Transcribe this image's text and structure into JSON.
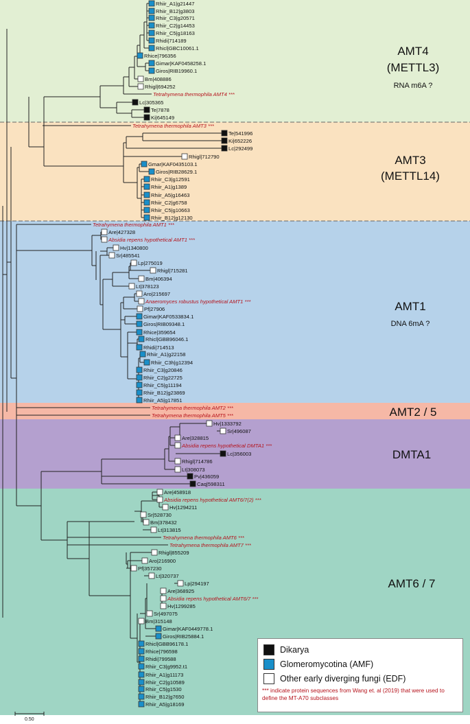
{
  "groups": [
    {
      "id": "amt4",
      "title": "AMT4",
      "title2": "(METTL3)",
      "subtitle": "RNA m6A ?",
      "color": "#e2efd3"
    },
    {
      "id": "amt3",
      "title": "AMT3",
      "title2": "(METTL14)",
      "subtitle": "",
      "color": "#fae2c0"
    },
    {
      "id": "amt1",
      "title": "AMT1",
      "title2": "",
      "subtitle": "DNA 6mA ?",
      "color": "#b6d2ea"
    },
    {
      "id": "amt25",
      "title": "AMT2 / 5",
      "title2": "",
      "subtitle": "",
      "color": "#f6b8a6"
    },
    {
      "id": "dmta1",
      "title": "DMTA1",
      "title2": "",
      "subtitle": "",
      "color": "#b4a0cf"
    },
    {
      "id": "amt67",
      "title": "AMT6 / 7",
      "title2": "",
      "subtitle": "",
      "color": "#9fd5c4"
    }
  ],
  "colors": {
    "dikarya": "#111111",
    "glomeromycotina": "#1a8fc9",
    "edf": "#ffffff",
    "tetrahymena": "#b5121b",
    "branch": "#222222"
  },
  "leaves": [
    {
      "label": "Rhiir_A1|g21447",
      "cat": "G"
    },
    {
      "label": "Rhiir_B12|g3803",
      "cat": "G"
    },
    {
      "label": "Rhiir_C3|g20571",
      "cat": "G"
    },
    {
      "label": "Rhiir_C2|g14453",
      "cat": "G"
    },
    {
      "label": "Rhiir_C5|g18163",
      "cat": "G"
    },
    {
      "label": "Rhidi|714189",
      "cat": "G"
    },
    {
      "label": "Rhicl|GBC10061.1",
      "cat": "G"
    },
    {
      "label": "Rhice|796356",
      "cat": "G"
    },
    {
      "label": "Gimar|KAF0458258.1",
      "cat": "G"
    },
    {
      "label": "Giros|RIB19960.1",
      "cat": "G"
    },
    {
      "label": "Bm|408886",
      "cat": "E"
    },
    {
      "label": "Rhigl|694252",
      "cat": "E"
    },
    {
      "label": "Tetrahymena thermophila AMT4 ***",
      "cat": "T"
    },
    {
      "label": "Lc|305365",
      "cat": "D"
    },
    {
      "label": "Te|7878",
      "cat": "D"
    },
    {
      "label": "Ki|645149",
      "cat": "D"
    },
    {
      "label": "Tetrahymena thermophila AMT3 ***",
      "cat": "T"
    },
    {
      "label": "Te|541996",
      "cat": "D"
    },
    {
      "label": "Ki|652226",
      "cat": "D"
    },
    {
      "label": "Lc|292499",
      "cat": "D"
    },
    {
      "label": "Rhigl|712790",
      "cat": "E"
    },
    {
      "label": "Gmar|KAF0435103.1",
      "cat": "G"
    },
    {
      "label": "Giros|RIB28629.1",
      "cat": "G"
    },
    {
      "label": "Rhiir_C3|g12591",
      "cat": "G"
    },
    {
      "label": "Rhiir_A1|g1389",
      "cat": "G"
    },
    {
      "label": "Rhiir_A5|g16463",
      "cat": "G"
    },
    {
      "label": "Rhiir_C2|g6758",
      "cat": "G"
    },
    {
      "label": "Rhiir_C5|g10663",
      "cat": "G"
    },
    {
      "label": "Rhiir_B12|g12130",
      "cat": "G"
    },
    {
      "label": "Tetrahymena thermophila AMT1 ***",
      "cat": "T"
    },
    {
      "label": "Are|427328",
      "cat": "E"
    },
    {
      "label": "Absidia repens hypothetical AMT1 ***",
      "cat": "TE"
    },
    {
      "label": "Hv|1340800",
      "cat": "E"
    },
    {
      "label": "Sr|485541",
      "cat": "E"
    },
    {
      "label": "Lp|275019",
      "cat": "E"
    },
    {
      "label": "Rhigl|715281",
      "cat": "E"
    },
    {
      "label": "Bm|406394",
      "cat": "E"
    },
    {
      "label": "Lt|378123",
      "cat": "E"
    },
    {
      "label": "Aro|215697",
      "cat": "E"
    },
    {
      "label": "Anaeromyces robustus hypothetical AMT1 ***",
      "cat": "TE"
    },
    {
      "label": "Pf|27906",
      "cat": "E"
    },
    {
      "label": "Gimar|KAF0533834.1",
      "cat": "G"
    },
    {
      "label": "Giros|RIB09348.1",
      "cat": "G"
    },
    {
      "label": "Rhice|359654",
      "cat": "G"
    },
    {
      "label": "Rhicl|GBB96046.1",
      "cat": "G"
    },
    {
      "label": "Rhidi|714513",
      "cat": "G"
    },
    {
      "label": "Rhiir_A1|g22158",
      "cat": "G"
    },
    {
      "label": "Rhiir_C3h|g12394",
      "cat": "G"
    },
    {
      "label": "Rhiir_C3|g20846",
      "cat": "G"
    },
    {
      "label": "Rhiir_C2|g22725",
      "cat": "G"
    },
    {
      "label": "Rhiir_C5|g11194",
      "cat": "G"
    },
    {
      "label": "Rhiir_B12|g23869",
      "cat": "G"
    },
    {
      "label": "Rhiir_A5|g17851",
      "cat": "G"
    },
    {
      "label": "Tetrahymena thermophila AMT2 ***",
      "cat": "T"
    },
    {
      "label": "Tetrahymena thermophila AMT5 ***",
      "cat": "T"
    },
    {
      "label": "Hv|1333792",
      "cat": "E"
    },
    {
      "label": "Sr|496087",
      "cat": "E"
    },
    {
      "label": "Are|328815",
      "cat": "E"
    },
    {
      "label": "Absidia repens hypothetical DMTA1 ***",
      "cat": "TE"
    },
    {
      "label": "Lc|356003",
      "cat": "D"
    },
    {
      "label": "Rhigl|714786",
      "cat": "E"
    },
    {
      "label": "Lt|308073",
      "cat": "E"
    },
    {
      "label": "Pv|436059",
      "cat": "D"
    },
    {
      "label": "Caq|598311",
      "cat": "D"
    },
    {
      "label": "Are|458918",
      "cat": "E"
    },
    {
      "label": "Absidia repens hypothetical AMT6/7(2) ***",
      "cat": "TE"
    },
    {
      "label": "Hv|1294211",
      "cat": "E"
    },
    {
      "label": "Sr|528730",
      "cat": "E"
    },
    {
      "label": "Bm|378432",
      "cat": "E"
    },
    {
      "label": "Lt|313815",
      "cat": "E"
    },
    {
      "label": "Tetrahymena thermophila AMT6 ***",
      "cat": "T"
    },
    {
      "label": "Tetrahymena thermophila AMT7 ***",
      "cat": "T"
    },
    {
      "label": "Rhigl|855209",
      "cat": "E"
    },
    {
      "label": "Aro|216900",
      "cat": "E"
    },
    {
      "label": "Pf|357230",
      "cat": "E"
    },
    {
      "label": "Lt|320737",
      "cat": "E"
    },
    {
      "label": "Lp|294197",
      "cat": "E"
    },
    {
      "label": "Are|368925",
      "cat": "E"
    },
    {
      "label": "Absidia repens hypothetical AMT6/7 ***",
      "cat": "TE"
    },
    {
      "label": "Hv|1299285",
      "cat": "E"
    },
    {
      "label": "Sr|497075",
      "cat": "E"
    },
    {
      "label": "Bm|315148",
      "cat": "E"
    },
    {
      "label": "Gimar|KAF0449778.1",
      "cat": "G"
    },
    {
      "label": "Giros|RIB25884.1",
      "cat": "G"
    },
    {
      "label": "Rhicl|GBB96178.1",
      "cat": "G"
    },
    {
      "label": "Rhice|796598",
      "cat": "G"
    },
    {
      "label": "Rhidi|799588",
      "cat": "G"
    },
    {
      "label": "Rhiir_C3|g9952.t1",
      "cat": "G"
    },
    {
      "label": "Rhiir_A1|g11173",
      "cat": "G"
    },
    {
      "label": "Rhiir_C2|g10589",
      "cat": "G"
    },
    {
      "label": "Rhiir_C5|g1530",
      "cat": "G"
    },
    {
      "label": "Rhiir_B12|g7650",
      "cat": "G"
    },
    {
      "label": "Rhiir_A5|g18169",
      "cat": "G"
    }
  ],
  "legend": {
    "items": [
      {
        "label": "Dikarya",
        "cat": "D"
      },
      {
        "label": "Glomeromycotina (AMF)",
        "cat": "G"
      },
      {
        "label": "Other early diverging fungi (EDF)",
        "cat": "E"
      }
    ],
    "note": "*** indicate protein sequences from Wang et. al (2019) that were used to define the MT-A70 subclasses"
  },
  "scale": {
    "label": "0.50"
  }
}
